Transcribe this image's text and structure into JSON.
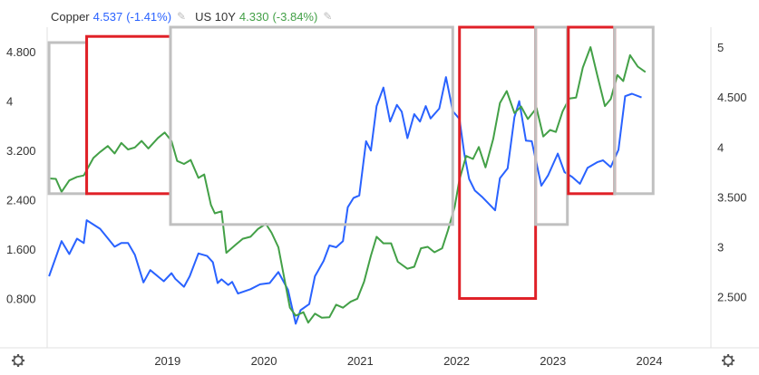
{
  "legend": [
    {
      "name": "Copper",
      "value": "4.537",
      "change": "(-1.41%)",
      "color": "#2962ff",
      "icon": "pencil-icon"
    },
    {
      "name": "US 10Y",
      "value": "4.330",
      "change": "(-3.84%)",
      "color": "#43a047",
      "icon": "pencil-icon"
    }
  ],
  "settings_icons": [
    "gear-icon",
    "gear-icon"
  ],
  "chart_data": {
    "type": "line",
    "x_ticks": [
      "2019",
      "2020",
      "2021",
      "2022",
      "2023",
      "2024"
    ],
    "y_left_ticks": [
      "0.800",
      "1.600",
      "2.400",
      "3.200",
      "4",
      "4.800"
    ],
    "y_right_ticks": [
      "2.500",
      "3",
      "3.500",
      "4",
      "4.500",
      "5"
    ],
    "y_left_range": [
      0,
      5.2
    ],
    "y_right_range": [
      1.988,
      5.2
    ],
    "x_range": [
      2017.75,
      2024.64
    ],
    "series": [
      {
        "name": "Copper",
        "axis": "left",
        "color": "#2962ff",
        "points": [
          [
            2017.77,
            1.16
          ],
          [
            2017.9,
            1.73
          ],
          [
            2017.98,
            1.52
          ],
          [
            2018.06,
            1.77
          ],
          [
            2018.13,
            1.7
          ],
          [
            2018.16,
            2.07
          ],
          [
            2018.3,
            1.93
          ],
          [
            2018.45,
            1.64
          ],
          [
            2018.52,
            1.7
          ],
          [
            2018.59,
            1.7
          ],
          [
            2018.66,
            1.51
          ],
          [
            2018.75,
            1.06
          ],
          [
            2018.82,
            1.26
          ],
          [
            2018.96,
            1.08
          ],
          [
            2019.04,
            1.21
          ],
          [
            2019.08,
            1.12
          ],
          [
            2019.17,
            0.99
          ],
          [
            2019.23,
            1.16
          ],
          [
            2019.32,
            1.53
          ],
          [
            2019.41,
            1.49
          ],
          [
            2019.47,
            1.39
          ],
          [
            2019.52,
            1.05
          ],
          [
            2019.56,
            1.11
          ],
          [
            2019.63,
            1.02
          ],
          [
            2019.67,
            1.07
          ],
          [
            2019.73,
            0.88
          ],
          [
            2019.86,
            0.95
          ],
          [
            2019.96,
            1.03
          ],
          [
            2020.06,
            1.05
          ],
          [
            2020.15,
            1.23
          ],
          [
            2020.25,
            0.94
          ],
          [
            2020.33,
            0.39
          ],
          [
            2020.38,
            0.61
          ],
          [
            2020.47,
            0.71
          ],
          [
            2020.53,
            1.16
          ],
          [
            2020.62,
            1.41
          ],
          [
            2020.68,
            1.66
          ],
          [
            2020.75,
            1.63
          ],
          [
            2020.82,
            1.73
          ],
          [
            2020.87,
            2.28
          ],
          [
            2020.93,
            2.43
          ],
          [
            2020.99,
            2.47
          ],
          [
            2021.06,
            3.35
          ],
          [
            2021.11,
            3.2
          ],
          [
            2021.17,
            3.92
          ],
          [
            2021.24,
            4.22
          ],
          [
            2021.31,
            3.67
          ],
          [
            2021.38,
            3.94
          ],
          [
            2021.43,
            3.83
          ],
          [
            2021.49,
            3.4
          ],
          [
            2021.56,
            3.79
          ],
          [
            2021.62,
            3.67
          ],
          [
            2021.68,
            3.92
          ],
          [
            2021.73,
            3.72
          ],
          [
            2021.82,
            3.88
          ],
          [
            2021.89,
            4.39
          ],
          [
            2021.96,
            3.84
          ],
          [
            2022.03,
            3.71
          ],
          [
            2022.08,
            3.15
          ],
          [
            2022.13,
            2.74
          ],
          [
            2022.19,
            2.55
          ],
          [
            2022.27,
            2.44
          ],
          [
            2022.35,
            2.31
          ],
          [
            2022.4,
            2.23
          ],
          [
            2022.45,
            2.75
          ],
          [
            2022.53,
            2.91
          ],
          [
            2022.6,
            3.74
          ],
          [
            2022.65,
            4.0
          ],
          [
            2022.72,
            3.36
          ],
          [
            2022.78,
            3.35
          ],
          [
            2022.88,
            2.63
          ],
          [
            2022.95,
            2.8
          ],
          [
            2023.05,
            3.15
          ],
          [
            2023.12,
            2.85
          ],
          [
            2023.2,
            2.77
          ],
          [
            2023.28,
            2.66
          ],
          [
            2023.36,
            2.92
          ],
          [
            2023.46,
            3.01
          ],
          [
            2023.52,
            3.04
          ],
          [
            2023.6,
            2.93
          ],
          [
            2023.68,
            3.21
          ],
          [
            2023.75,
            4.08
          ],
          [
            2023.82,
            4.12
          ],
          [
            2023.92,
            4.06
          ]
        ]
      },
      {
        "name": "US 10Y",
        "axis": "right",
        "color": "#43a047",
        "points": [
          [
            2017.77,
            3.685
          ],
          [
            2017.84,
            3.68
          ],
          [
            2017.9,
            3.55
          ],
          [
            2017.98,
            3.665
          ],
          [
            2018.06,
            3.7
          ],
          [
            2018.13,
            3.715
          ],
          [
            2018.23,
            3.89
          ],
          [
            2018.3,
            3.95
          ],
          [
            2018.38,
            4.01
          ],
          [
            2018.45,
            3.935
          ],
          [
            2018.52,
            4.04
          ],
          [
            2018.59,
            3.975
          ],
          [
            2018.66,
            3.995
          ],
          [
            2018.73,
            4.06
          ],
          [
            2018.8,
            3.985
          ],
          [
            2018.9,
            4.09
          ],
          [
            2018.97,
            4.145
          ],
          [
            2019.04,
            4.06
          ],
          [
            2019.1,
            3.86
          ],
          [
            2019.17,
            3.83
          ],
          [
            2019.24,
            3.87
          ],
          [
            2019.32,
            3.69
          ],
          [
            2019.38,
            3.725
          ],
          [
            2019.45,
            3.42
          ],
          [
            2019.49,
            3.335
          ],
          [
            2019.56,
            3.355
          ],
          [
            2019.61,
            2.94
          ],
          [
            2019.7,
            3.015
          ],
          [
            2019.78,
            3.08
          ],
          [
            2019.86,
            3.1
          ],
          [
            2019.94,
            3.18
          ],
          [
            2020.02,
            3.23
          ],
          [
            2020.08,
            3.14
          ],
          [
            2020.15,
            2.995
          ],
          [
            2020.27,
            2.39
          ],
          [
            2020.33,
            2.31
          ],
          [
            2020.41,
            2.345
          ],
          [
            2020.46,
            2.24
          ],
          [
            2020.53,
            2.33
          ],
          [
            2020.6,
            2.29
          ],
          [
            2020.68,
            2.295
          ],
          [
            2020.75,
            2.42
          ],
          [
            2020.82,
            2.39
          ],
          [
            2020.9,
            2.45
          ],
          [
            2020.97,
            2.48
          ],
          [
            2021.04,
            2.65
          ],
          [
            2021.11,
            2.91
          ],
          [
            2021.17,
            3.1
          ],
          [
            2021.24,
            3.035
          ],
          [
            2021.32,
            3.035
          ],
          [
            2021.39,
            2.85
          ],
          [
            2021.49,
            2.78
          ],
          [
            2021.56,
            2.8
          ],
          [
            2021.63,
            2.985
          ],
          [
            2021.7,
            3.0
          ],
          [
            2021.77,
            2.945
          ],
          [
            2021.85,
            2.985
          ],
          [
            2021.91,
            3.165
          ],
          [
            2021.98,
            3.4
          ],
          [
            2022.03,
            3.675
          ],
          [
            2022.1,
            3.91
          ],
          [
            2022.17,
            3.88
          ],
          [
            2022.23,
            4.0
          ],
          [
            2022.3,
            3.795
          ],
          [
            2022.38,
            4.08
          ],
          [
            2022.45,
            4.44
          ],
          [
            2022.52,
            4.56
          ],
          [
            2022.6,
            4.34
          ],
          [
            2022.67,
            4.405
          ],
          [
            2022.74,
            4.28
          ],
          [
            2022.83,
            4.39
          ],
          [
            2022.9,
            4.105
          ],
          [
            2022.97,
            4.17
          ],
          [
            2023.03,
            4.15
          ],
          [
            2023.1,
            4.355
          ],
          [
            2023.17,
            4.485
          ],
          [
            2023.24,
            4.495
          ],
          [
            2023.31,
            4.795
          ],
          [
            2023.39,
            5.0
          ],
          [
            2023.46,
            4.72
          ],
          [
            2023.54,
            4.41
          ],
          [
            2023.6,
            4.48
          ],
          [
            2023.67,
            4.72
          ],
          [
            2023.73,
            4.66
          ],
          [
            2023.8,
            4.92
          ],
          [
            2023.88,
            4.805
          ],
          [
            2023.96,
            4.75
          ]
        ]
      }
    ],
    "annotations": [
      {
        "type": "rect",
        "color": "#c0c0c0",
        "x0": 2017.77,
        "x1": 2018.16,
        "y0": 2.5,
        "y1": 4.95
      },
      {
        "type": "rect",
        "color": "#e02027",
        "x0": 2018.16,
        "x1": 2019.03,
        "y0": 2.5,
        "y1": 5.05
      },
      {
        "type": "rect",
        "color": "#c0c0c0",
        "x0": 2019.03,
        "x1": 2021.96,
        "y0": 2.0,
        "y1": 6.2
      },
      {
        "type": "rect",
        "color": "#e02027",
        "x0": 2022.03,
        "x1": 2022.82,
        "y0": 0.8,
        "y1": 6.45
      },
      {
        "type": "rect",
        "color": "#c0c0c0",
        "x0": 2022.82,
        "x1": 2023.15,
        "y0": 2.0,
        "y1": 5.45
      },
      {
        "type": "rect",
        "color": "#e02027",
        "x0": 2023.16,
        "x1": 2023.64,
        "y0": 2.5,
        "y1": 6.95
      },
      {
        "type": "rect",
        "color": "#c0c0c0",
        "x0": 2023.64,
        "x1": 2024.04,
        "y0": 2.5,
        "y1": 5.9
      }
    ]
  }
}
